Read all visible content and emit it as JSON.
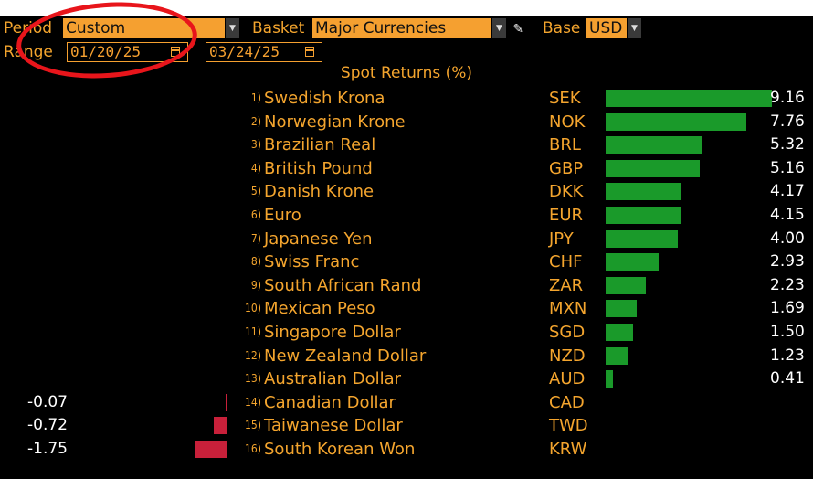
{
  "controls": {
    "period_label": "Period",
    "period_value": "Custom",
    "basket_label": "Basket",
    "basket_value": "Major Currencies",
    "base_label": "Base",
    "base_value": "USD",
    "range_label": "Range",
    "range_start": "01/20/25",
    "range_end": "03/24/25"
  },
  "icons": {
    "dropdown": "chevron-down-icon",
    "calendar": "calendar-icon",
    "edit": "pencil-icon"
  },
  "colors": {
    "accent": "#f4a52e",
    "positive": "#1a9a2a",
    "negative": "#c8203a",
    "annotation": "#e8151b"
  },
  "chart_data": {
    "type": "bar",
    "orientation": "horizontal",
    "title": "Spot Returns (%)",
    "items": [
      {
        "rank": "1)",
        "name": "Swedish Krona",
        "code": "SEK",
        "value": 9.16,
        "label": "9.16"
      },
      {
        "rank": "2)",
        "name": "Norwegian Krone",
        "code": "NOK",
        "value": 7.76,
        "label": "7.76"
      },
      {
        "rank": "3)",
        "name": "Brazilian Real",
        "code": "BRL",
        "value": 5.32,
        "label": "5.32"
      },
      {
        "rank": "4)",
        "name": "British Pound",
        "code": "GBP",
        "value": 5.16,
        "label": "5.16"
      },
      {
        "rank": "5)",
        "name": "Danish Krone",
        "code": "DKK",
        "value": 4.17,
        "label": "4.17"
      },
      {
        "rank": "6)",
        "name": "Euro",
        "code": "EUR",
        "value": 4.15,
        "label": "4.15"
      },
      {
        "rank": "7)",
        "name": "Japanese Yen",
        "code": "JPY",
        "value": 4.0,
        "label": "4.00"
      },
      {
        "rank": "8)",
        "name": "Swiss Franc",
        "code": "CHF",
        "value": 2.93,
        "label": "2.93"
      },
      {
        "rank": "9)",
        "name": "South African Rand",
        "code": "ZAR",
        "value": 2.23,
        "label": "2.23"
      },
      {
        "rank": "10)",
        "name": "Mexican Peso",
        "code": "MXN",
        "value": 1.69,
        "label": "1.69"
      },
      {
        "rank": "11)",
        "name": "Singapore Dollar",
        "code": "SGD",
        "value": 1.5,
        "label": "1.50"
      },
      {
        "rank": "12)",
        "name": "New Zealand Dollar",
        "code": "NZD",
        "value": 1.23,
        "label": "1.23"
      },
      {
        "rank": "13)",
        "name": "Australian Dollar",
        "code": "AUD",
        "value": 0.41,
        "label": "0.41"
      },
      {
        "rank": "14)",
        "name": "Canadian Dollar",
        "code": "CAD",
        "value": -0.07,
        "label": "-0.07"
      },
      {
        "rank": "15)",
        "name": "Taiwanese Dollar",
        "code": "TWD",
        "value": -0.72,
        "label": "-0.72"
      },
      {
        "rank": "16)",
        "name": "South Korean Won",
        "code": "KRW",
        "value": -1.75,
        "label": "-1.75"
      }
    ],
    "grid": false,
    "legend": "none"
  }
}
